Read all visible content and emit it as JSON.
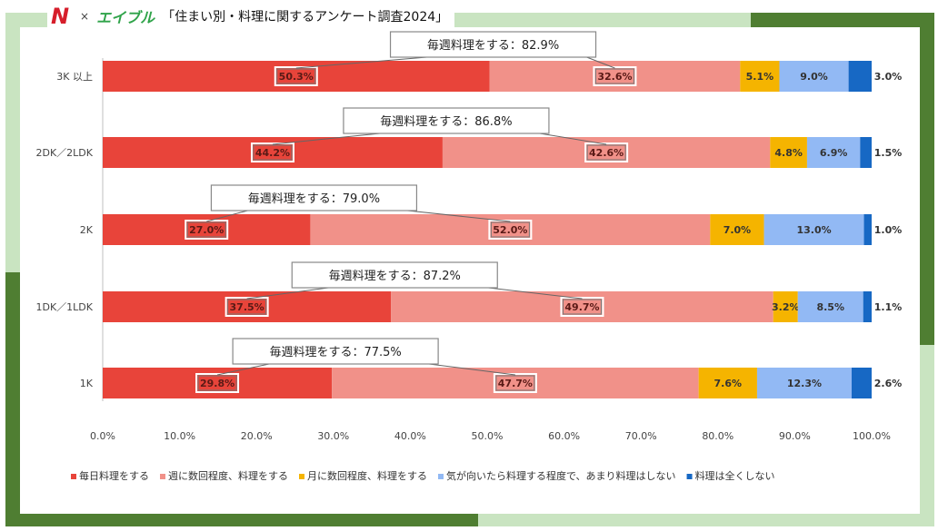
{
  "header": {
    "logo_n": "N",
    "x_mark": "×",
    "brand2": "エイブル",
    "title": "「住まい別・料理に関するアンケート調査2024」"
  },
  "colors": {
    "frame_dark": "#4f7e32",
    "frame_light": "#c9e4c1"
  },
  "chart_data": {
    "type": "bar",
    "orientation": "horizontal",
    "stacked": true,
    "categories": [
      "3K 以上",
      "2DK／2LDK",
      "2K",
      "1DK／1LDK",
      "1K"
    ],
    "series": [
      {
        "name": "毎日料理をする",
        "color": "#e8443a",
        "values": [
          50.3,
          44.2,
          27.0,
          37.5,
          29.8
        ]
      },
      {
        "name": "週に数回程度、料理をする",
        "color": "#f19189",
        "values": [
          32.6,
          42.6,
          52.0,
          49.7,
          47.7
        ]
      },
      {
        "name": "月に数回程度、料理をする",
        "color": "#f5b400",
        "values": [
          5.1,
          4.8,
          7.0,
          3.2,
          7.6
        ]
      },
      {
        "name": "気が向いたら料理する程度で、あまり料理はしない",
        "color": "#92b9f4",
        "values": [
          9.0,
          6.9,
          13.0,
          8.5,
          12.3
        ]
      },
      {
        "name": "料理は全くしない",
        "color": "#1768c4",
        "values": [
          3.0,
          1.5,
          1.0,
          1.1,
          2.6
        ]
      }
    ],
    "data_labels": [
      [
        "50.3%",
        "32.6%",
        "5.1%",
        "9.0%",
        "3.0%"
      ],
      [
        "44.2%",
        "42.6%",
        "4.8%",
        "6.9%",
        "1.5%"
      ],
      [
        "27.0%",
        "52.0%",
        "7.0%",
        "13.0%",
        "1.0%"
      ],
      [
        "37.5%",
        "49.7%",
        "3.2%",
        "8.5%",
        "1.1%"
      ],
      [
        "29.8%",
        "47.7%",
        "7.6%",
        "12.3%",
        "2.6%"
      ]
    ],
    "annotations": [
      "毎週料理をする：82.9%",
      "毎週料理をする：86.8%",
      "毎週料理をする：79.0%",
      "毎週料理をする：87.2%",
      "毎週料理をする：77.5%"
    ],
    "xlim": [
      0,
      100
    ],
    "xticks": [
      0,
      10,
      20,
      30,
      40,
      50,
      60,
      70,
      80,
      90,
      100
    ],
    "xtick_labels": [
      "0.0%",
      "10.0%",
      "20.0%",
      "30.0%",
      "40.0%",
      "50.0%",
      "60.0%",
      "70.0%",
      "80.0%",
      "90.0%",
      "100.0%"
    ],
    "grid": false,
    "legend_position": "bottom"
  }
}
